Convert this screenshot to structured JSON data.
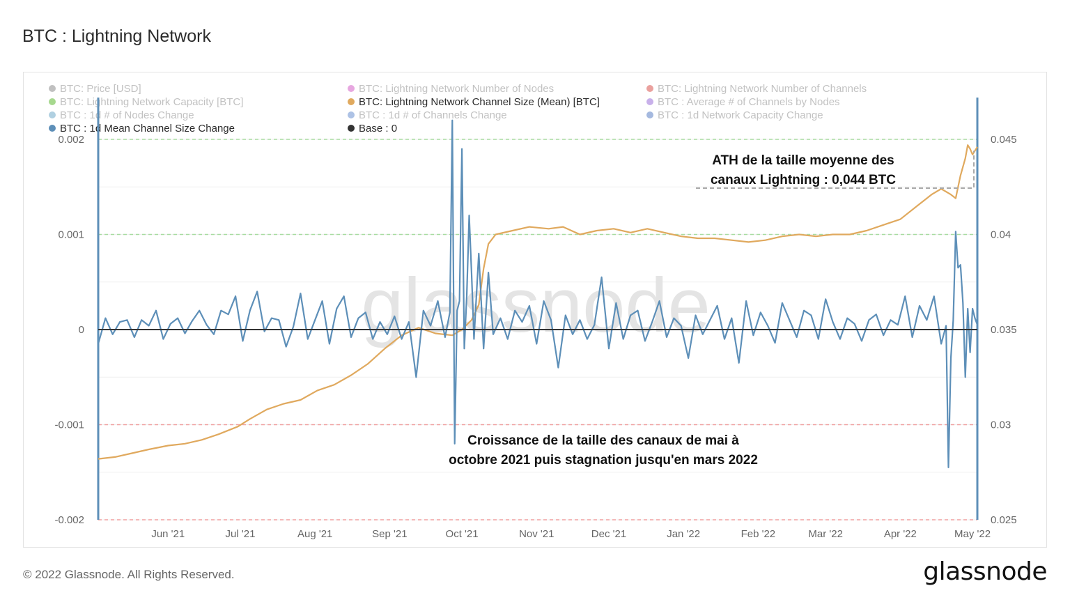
{
  "page": {
    "title": "BTC : Lightning Network",
    "copyright": "© 2022 Glassnode. All Rights Reserved.",
    "logo": "glassnode",
    "watermark": "glassnode"
  },
  "chart_data": {
    "type": "line",
    "legend": [
      {
        "label": "BTC: Price [USD]",
        "color": "#8c8c8c",
        "active": false
      },
      {
        "label": "BTC: Lightning Network Number of Nodes",
        "color": "#d45fc7",
        "active": false
      },
      {
        "label": "BTC: Lightning Network Number of Channels",
        "color": "#d9534f",
        "active": false
      },
      {
        "label": "BTC: Lightning Network Capacity [BTC]",
        "color": "#5cb832",
        "active": false
      },
      {
        "label": "BTC: Lightning Network Channel Size (Mean) [BTC]",
        "color": "#e0a95e",
        "active": true
      },
      {
        "label": "BTC : Average # of Channels by Nodes",
        "color": "#9b6fd8",
        "active": false
      },
      {
        "label": "BTC : 1d # of Nodes Change",
        "color": "#6fa9c9",
        "active": false
      },
      {
        "label": "BTC : 1d # of Channels Change",
        "color": "#6a8fd0",
        "active": false
      },
      {
        "label": "BTC : 1d Network Capacity Change",
        "color": "#5b7fc4",
        "active": false
      },
      {
        "label": "BTC : 1d Mean Channel Size Change",
        "color": "#5d8fb8",
        "active": true
      },
      {
        "label": "Base : 0",
        "color": "#333333",
        "active": true
      }
    ],
    "x_tick_labels": [
      "Jun '21",
      "Jul '21",
      "Aug '21",
      "Sep '21",
      "Oct '21",
      "Nov '21",
      "Dec '21",
      "Jan '22",
      "Feb '22",
      "Mar '22",
      "Apr '22",
      "May '22"
    ],
    "x_ticks": [
      "2021-06-01",
      "2021-07-01",
      "2021-08-01",
      "2021-09-01",
      "2021-10-01",
      "2021-11-01",
      "2021-12-01",
      "2022-01-01",
      "2022-02-01",
      "2022-03-01",
      "2022-04-01",
      "2022-05-01"
    ],
    "x_range": [
      "2021-05-03",
      "2022-05-03"
    ],
    "y_left": {
      "min": -0.002,
      "max": 0.002,
      "tick_labels": [
        "0.002",
        "0.001",
        "0",
        "-0.001",
        "-0.002"
      ],
      "tick_values": [
        0.002,
        0.001,
        0,
        -0.001,
        -0.002
      ]
    },
    "y_right": {
      "min": 0.025,
      "max": 0.045,
      "tick_labels": [
        "0.045",
        "0.04",
        "0.035",
        "0.03",
        "0.025"
      ],
      "tick_values": [
        0.045,
        0.04,
        0.035,
        0.03,
        0.025
      ]
    },
    "reference_lines": [
      {
        "axis": "left",
        "value": 0.002,
        "color": "#a8dca0"
      },
      {
        "axis": "left",
        "value": 0.001,
        "color": "#a8dca0"
      },
      {
        "axis": "left",
        "value": -0.001,
        "color": "#f0a0a0"
      },
      {
        "axis": "left",
        "value": -0.002,
        "color": "#f0a0a0"
      }
    ],
    "series": [
      {
        "name": "BTC: Lightning Network Channel Size (Mean) [BTC]",
        "axis": "right",
        "color": "#e0a95e",
        "points": [
          [
            "2021-05-03",
            0.0282
          ],
          [
            "2021-05-10",
            0.0283
          ],
          [
            "2021-05-17",
            0.0285
          ],
          [
            "2021-05-24",
            0.0287
          ],
          [
            "2021-06-01",
            0.0289
          ],
          [
            "2021-06-08",
            0.029
          ],
          [
            "2021-06-15",
            0.0292
          ],
          [
            "2021-06-22",
            0.0295
          ],
          [
            "2021-06-30",
            0.0299
          ],
          [
            "2021-07-05",
            0.0303
          ],
          [
            "2021-07-12",
            0.0308
          ],
          [
            "2021-07-19",
            0.0311
          ],
          [
            "2021-07-26",
            0.0313
          ],
          [
            "2021-08-02",
            0.0318
          ],
          [
            "2021-08-09",
            0.0321
          ],
          [
            "2021-08-16",
            0.0326
          ],
          [
            "2021-08-23",
            0.0332
          ],
          [
            "2021-08-30",
            0.034
          ],
          [
            "2021-09-06",
            0.0347
          ],
          [
            "2021-09-13",
            0.0351
          ],
          [
            "2021-09-20",
            0.0348
          ],
          [
            "2021-09-27",
            0.0347
          ],
          [
            "2021-10-01",
            0.035
          ],
          [
            "2021-10-05",
            0.0355
          ],
          [
            "2021-10-08",
            0.0363
          ],
          [
            "2021-10-10",
            0.0382
          ],
          [
            "2021-10-12",
            0.0395
          ],
          [
            "2021-10-15",
            0.04
          ],
          [
            "2021-10-22",
            0.0402
          ],
          [
            "2021-10-29",
            0.0404
          ],
          [
            "2021-11-06",
            0.0403
          ],
          [
            "2021-11-12",
            0.0404
          ],
          [
            "2021-11-19",
            0.04
          ],
          [
            "2021-11-26",
            0.0402
          ],
          [
            "2021-12-03",
            0.0403
          ],
          [
            "2021-12-10",
            0.0401
          ],
          [
            "2021-12-17",
            0.0403
          ],
          [
            "2021-12-24",
            0.0401
          ],
          [
            "2021-12-31",
            0.0399
          ],
          [
            "2022-01-07",
            0.0398
          ],
          [
            "2022-01-14",
            0.0398
          ],
          [
            "2022-01-21",
            0.0397
          ],
          [
            "2022-01-28",
            0.0396
          ],
          [
            "2022-02-04",
            0.0397
          ],
          [
            "2022-02-11",
            0.0399
          ],
          [
            "2022-02-18",
            0.04
          ],
          [
            "2022-02-25",
            0.0399
          ],
          [
            "2022-03-04",
            0.04
          ],
          [
            "2022-03-11",
            0.04
          ],
          [
            "2022-03-18",
            0.0402
          ],
          [
            "2022-03-25",
            0.0405
          ],
          [
            "2022-04-01",
            0.0408
          ],
          [
            "2022-04-08",
            0.0415
          ],
          [
            "2022-04-14",
            0.0421
          ],
          [
            "2022-04-18",
            0.0424
          ],
          [
            "2022-04-22",
            0.0421
          ],
          [
            "2022-04-24",
            0.0419
          ],
          [
            "2022-04-26",
            0.0431
          ],
          [
            "2022-04-28",
            0.044
          ],
          [
            "2022-04-29",
            0.0447
          ],
          [
            "2022-04-30",
            0.0445
          ],
          [
            "2022-05-01",
            0.0442
          ],
          [
            "2022-05-02",
            0.0444
          ],
          [
            "2022-05-03",
            0.0446
          ]
        ]
      },
      {
        "name": "BTC : 1d Mean Channel Size Change",
        "axis": "left",
        "color": "#5d8fb8",
        "points": [
          [
            "2021-05-03",
            -0.00015
          ],
          [
            "2021-05-06",
            0.00012
          ],
          [
            "2021-05-09",
            -5e-05
          ],
          [
            "2021-05-12",
            8e-05
          ],
          [
            "2021-05-15",
            0.0001
          ],
          [
            "2021-05-18",
            -8e-05
          ],
          [
            "2021-05-21",
            0.0001
          ],
          [
            "2021-05-24",
            4e-05
          ],
          [
            "2021-05-27",
            0.0002
          ],
          [
            "2021-05-30",
            -0.0001
          ],
          [
            "2021-06-02",
            6e-05
          ],
          [
            "2021-06-05",
            0.00012
          ],
          [
            "2021-06-08",
            -4e-05
          ],
          [
            "2021-06-11",
            9e-05
          ],
          [
            "2021-06-14",
            0.0002
          ],
          [
            "2021-06-17",
            5e-05
          ],
          [
            "2021-06-20",
            -5e-05
          ],
          [
            "2021-06-23",
            0.0002
          ],
          [
            "2021-06-26",
            0.00016
          ],
          [
            "2021-06-29",
            0.00035
          ],
          [
            "2021-07-02",
            -0.00012
          ],
          [
            "2021-07-05",
            0.0002
          ],
          [
            "2021-07-08",
            0.0004
          ],
          [
            "2021-07-11",
            -2e-05
          ],
          [
            "2021-07-14",
            0.00012
          ],
          [
            "2021-07-17",
            0.0001
          ],
          [
            "2021-07-20",
            -0.00018
          ],
          [
            "2021-07-23",
            3e-05
          ],
          [
            "2021-07-26",
            0.00038
          ],
          [
            "2021-07-29",
            -0.0001
          ],
          [
            "2021-08-01",
            0.0001
          ],
          [
            "2021-08-04",
            0.0003
          ],
          [
            "2021-08-07",
            -0.00015
          ],
          [
            "2021-08-10",
            0.00022
          ],
          [
            "2021-08-13",
            0.00035
          ],
          [
            "2021-08-16",
            -8e-05
          ],
          [
            "2021-08-19",
            0.00012
          ],
          [
            "2021-08-22",
            0.00018
          ],
          [
            "2021-08-25",
            -0.0001
          ],
          [
            "2021-08-28",
            8e-05
          ],
          [
            "2021-08-31",
            -5e-05
          ],
          [
            "2021-09-03",
            0.00014
          ],
          [
            "2021-09-06",
            -0.0001
          ],
          [
            "2021-09-09",
            8e-05
          ],
          [
            "2021-09-12",
            -0.0005
          ],
          [
            "2021-09-15",
            0.0002
          ],
          [
            "2021-09-18",
            4e-05
          ],
          [
            "2021-09-21",
            0.0003
          ],
          [
            "2021-09-24",
            -8e-05
          ],
          [
            "2021-09-26",
            0.00018
          ],
          [
            "2021-09-27",
            0.0022
          ],
          [
            "2021-09-28",
            -0.0012
          ],
          [
            "2021-09-29",
            0.0002
          ],
          [
            "2021-09-30",
            0.0003
          ],
          [
            "2021-10-01",
            0.0019
          ],
          [
            "2021-10-02",
            -0.0002
          ],
          [
            "2021-10-03",
            0.00035
          ],
          [
            "2021-10-04",
            0.0012
          ],
          [
            "2021-10-05",
            0.0006
          ],
          [
            "2021-10-06",
            -0.0001
          ],
          [
            "2021-10-08",
            0.0008
          ],
          [
            "2021-10-10",
            -0.0002
          ],
          [
            "2021-10-12",
            0.0006
          ],
          [
            "2021-10-14",
            -5e-05
          ],
          [
            "2021-10-17",
            0.00012
          ],
          [
            "2021-10-20",
            -0.0001
          ],
          [
            "2021-10-23",
            0.0002
          ],
          [
            "2021-10-26",
            8e-05
          ],
          [
            "2021-10-29",
            0.00025
          ],
          [
            "2021-11-01",
            -0.00015
          ],
          [
            "2021-11-04",
            0.0003
          ],
          [
            "2021-11-07",
            0.0001
          ],
          [
            "2021-11-10",
            -0.0004
          ],
          [
            "2021-11-13",
            0.00015
          ],
          [
            "2021-11-16",
            -5e-05
          ],
          [
            "2021-11-19",
            0.0001
          ],
          [
            "2021-11-22",
            -0.0001
          ],
          [
            "2021-11-25",
            5e-05
          ],
          [
            "2021-11-28",
            0.00055
          ],
          [
            "2021-12-01",
            -0.0002
          ],
          [
            "2021-12-04",
            0.00028
          ],
          [
            "2021-12-07",
            -0.0001
          ],
          [
            "2021-12-10",
            0.00015
          ],
          [
            "2021-12-13",
            0.0002
          ],
          [
            "2021-12-16",
            -0.00012
          ],
          [
            "2021-12-19",
            8e-05
          ],
          [
            "2021-12-22",
            0.0003
          ],
          [
            "2021-12-25",
            -8e-05
          ],
          [
            "2021-12-28",
            0.00012
          ],
          [
            "2021-12-31",
            4e-05
          ],
          [
            "2022-01-03",
            -0.0003
          ],
          [
            "2022-01-06",
            0.00015
          ],
          [
            "2022-01-09",
            -5e-05
          ],
          [
            "2022-01-12",
            0.0001
          ],
          [
            "2022-01-15",
            0.00025
          ],
          [
            "2022-01-18",
            -0.0001
          ],
          [
            "2022-01-21",
            0.00012
          ],
          [
            "2022-01-24",
            -0.00035
          ],
          [
            "2022-01-27",
            0.0003
          ],
          [
            "2022-01-30",
            -6e-05
          ],
          [
            "2022-02-02",
            0.00018
          ],
          [
            "2022-02-05",
            4e-05
          ],
          [
            "2022-02-08",
            -0.00014
          ],
          [
            "2022-02-11",
            0.00028
          ],
          [
            "2022-02-14",
            0.0001
          ],
          [
            "2022-02-17",
            -8e-05
          ],
          [
            "2022-02-20",
            0.0002
          ],
          [
            "2022-02-23",
            0.00015
          ],
          [
            "2022-02-26",
            -0.0001
          ],
          [
            "2022-03-01",
            0.00032
          ],
          [
            "2022-03-04",
            8e-05
          ],
          [
            "2022-03-07",
            -0.0001
          ],
          [
            "2022-03-10",
            0.00012
          ],
          [
            "2022-03-13",
            6e-05
          ],
          [
            "2022-03-16",
            -0.00012
          ],
          [
            "2022-03-19",
            0.0001
          ],
          [
            "2022-03-22",
            0.00016
          ],
          [
            "2022-03-25",
            -6e-05
          ],
          [
            "2022-03-28",
            0.0001
          ],
          [
            "2022-03-31",
            5e-05
          ],
          [
            "2022-04-03",
            0.00035
          ],
          [
            "2022-04-06",
            -8e-05
          ],
          [
            "2022-04-09",
            0.00025
          ],
          [
            "2022-04-12",
            0.0001
          ],
          [
            "2022-04-15",
            0.00035
          ],
          [
            "2022-04-18",
            -0.00015
          ],
          [
            "2022-04-20",
            4e-05
          ],
          [
            "2022-04-21",
            -0.00145
          ],
          [
            "2022-04-22",
            -0.0003
          ],
          [
            "2022-04-23",
            0.0001
          ],
          [
            "2022-04-24",
            0.00103
          ],
          [
            "2022-04-25",
            0.00065
          ],
          [
            "2022-04-26",
            0.00068
          ],
          [
            "2022-04-27",
            0.00028
          ],
          [
            "2022-04-28",
            -0.0005
          ],
          [
            "2022-04-29",
            0.00022
          ],
          [
            "2022-04-30",
            -0.00024
          ],
          [
            "2022-05-01",
            0.00022
          ],
          [
            "2022-05-02",
            0.00012
          ],
          [
            "2022-05-03",
            5e-05
          ]
        ]
      },
      {
        "name": "Base : 0",
        "axis": "left",
        "color": "#333333",
        "points": [
          [
            "2021-05-03",
            0
          ],
          [
            "2022-05-03",
            0
          ]
        ]
      }
    ],
    "annotations": [
      {
        "text": [
          "ATH de la taille moyenne des",
          "canaux Lightning : 0,044 BTC"
        ],
        "bracket_value": 0.0444,
        "axis": "right"
      },
      {
        "text": [
          "Croissance de la taille des canaux de mai à",
          "octobre 2021 puis stagnation jusqu'en mars 2022"
        ]
      }
    ]
  }
}
